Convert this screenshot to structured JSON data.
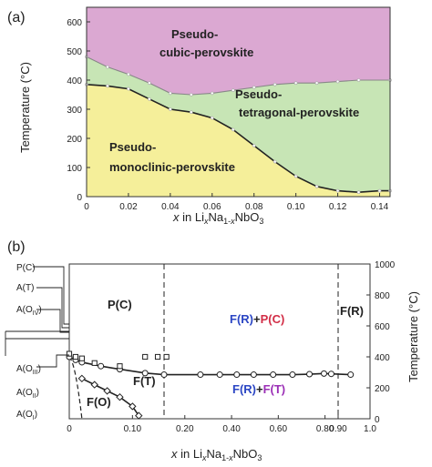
{
  "chart_data": [
    {
      "type": "area",
      "panel_label": "(a)",
      "xlabel": "x in LixNa1-xNbO3",
      "ylabel": "Temperature (°C)",
      "xlim": [
        0,
        0.145
      ],
      "ylim": [
        0,
        650
      ],
      "x_ticks": [
        "0",
        "0.02",
        "0.04",
        "0.06",
        "0.08",
        "0.10",
        "0.12",
        "0.14"
      ],
      "x_tick_values": [
        0,
        0.02,
        0.04,
        0.06,
        0.08,
        0.1,
        0.12,
        0.14
      ],
      "y_ticks": [
        "0",
        "100",
        "200",
        "300",
        "400",
        "500",
        "600"
      ],
      "y_tick_values": [
        0,
        100,
        200,
        300,
        400,
        500,
        600
      ],
      "upper_boundary": {
        "x": [
          0,
          0.01,
          0.02,
          0.03,
          0.04,
          0.05,
          0.06,
          0.07,
          0.08,
          0.09,
          0.1,
          0.11,
          0.12,
          0.13,
          0.145
        ],
        "y": [
          480,
          445,
          420,
          390,
          355,
          350,
          355,
          365,
          375,
          385,
          390,
          390,
          395,
          400,
          400
        ]
      },
      "lower_boundary": {
        "x": [
          0,
          0.01,
          0.02,
          0.03,
          0.04,
          0.05,
          0.06,
          0.07,
          0.08,
          0.09,
          0.1,
          0.11,
          0.12,
          0.13,
          0.14,
          0.145
        ],
        "y": [
          385,
          380,
          370,
          335,
          300,
          290,
          270,
          230,
          175,
          120,
          70,
          35,
          20,
          15,
          20,
          20
        ]
      },
      "regions": [
        {
          "label_lines": [
            "Pseudo-",
            "cubic-perovskite"
          ],
          "color": "#dba8d2"
        },
        {
          "label_lines": [
            "Pseudo-",
            "tetragonal-perovskite"
          ],
          "color": "#c7e5b5"
        },
        {
          "label_lines": [
            "Pseudo-",
            "monoclinic-perovskite"
          ],
          "color": "#f5ef9a"
        }
      ]
    },
    {
      "type": "scatter",
      "panel_label": "(b)",
      "xlabel": "x in LixNa1-xNbO3",
      "ylabel": "Temperature (°C)",
      "ylim": [
        0,
        1000
      ],
      "x_ticks": [
        "0",
        "0.10",
        "0.20",
        "0.40",
        "0.60",
        "0.80",
        "0.90",
        "1.0"
      ],
      "y_ticks": [
        "0",
        "200",
        "400",
        "600",
        "800",
        "1000"
      ],
      "y_tick_values": [
        0,
        200,
        400,
        600,
        800,
        1000
      ],
      "left_phase_labels": [
        "P(C)",
        "A(T)",
        "A(OIV)",
        "A(OIII)",
        "A(OII)",
        "A(OI)"
      ],
      "region_labels": [
        {
          "parts": [
            {
              "text": "P(C)",
              "color": "#d22d46"
            }
          ]
        },
        {
          "parts": [
            {
              "text": "F(R)",
              "color": "#2b46c4"
            },
            {
              "text": "+",
              "color": "#222222"
            },
            {
              "text": "P(C)",
              "color": "#d22d46"
            }
          ]
        },
        {
          "parts": [
            {
              "text": "F(R)",
              "color": "#2b46c4"
            }
          ]
        },
        {
          "parts": [
            {
              "text": "F(T)",
              "color": "#9b2fb6"
            }
          ]
        },
        {
          "parts": [
            {
              "text": "F(R)",
              "color": "#2b46c4"
            },
            {
              "text": "+",
              "color": "#222222"
            },
            {
              "text": "F(T)",
              "color": "#9b2fb6"
            }
          ]
        },
        {
          "parts": [
            {
              "text": "F(O)",
              "color": "#23a84c"
            }
          ]
        }
      ],
      "series": [
        {
          "marker": "circle",
          "values": [
            [
              0.0,
              400
            ],
            [
              0.01,
              380
            ],
            [
              0.02,
              365
            ],
            [
              0.05,
              340
            ],
            [
              0.08,
              320
            ],
            [
              0.12,
              295
            ],
            [
              0.15,
              285
            ],
            [
              0.3,
              285
            ],
            [
              0.38,
              285
            ],
            [
              0.45,
              285
            ],
            [
              0.52,
              285
            ],
            [
              0.6,
              285
            ],
            [
              0.68,
              285
            ],
            [
              0.75,
              288
            ],
            [
              0.81,
              292
            ],
            [
              0.84,
              290
            ],
            [
              0.92,
              285
            ]
          ]
        },
        {
          "marker": "square",
          "values": [
            [
              0.0,
              420
            ],
            [
              0.01,
              400
            ],
            [
              0.02,
              390
            ],
            [
              0.04,
              360
            ],
            [
              0.08,
              340
            ],
            [
              0.12,
              400
            ],
            [
              0.14,
              400
            ],
            [
              0.16,
              400
            ]
          ]
        },
        {
          "marker": "diamond",
          "values": [
            [
              0.02,
              260
            ],
            [
              0.04,
              220
            ],
            [
              0.06,
              180
            ],
            [
              0.08,
              140
            ],
            [
              0.1,
              80
            ],
            [
              0.11,
              20
            ]
          ]
        }
      ]
    }
  ]
}
